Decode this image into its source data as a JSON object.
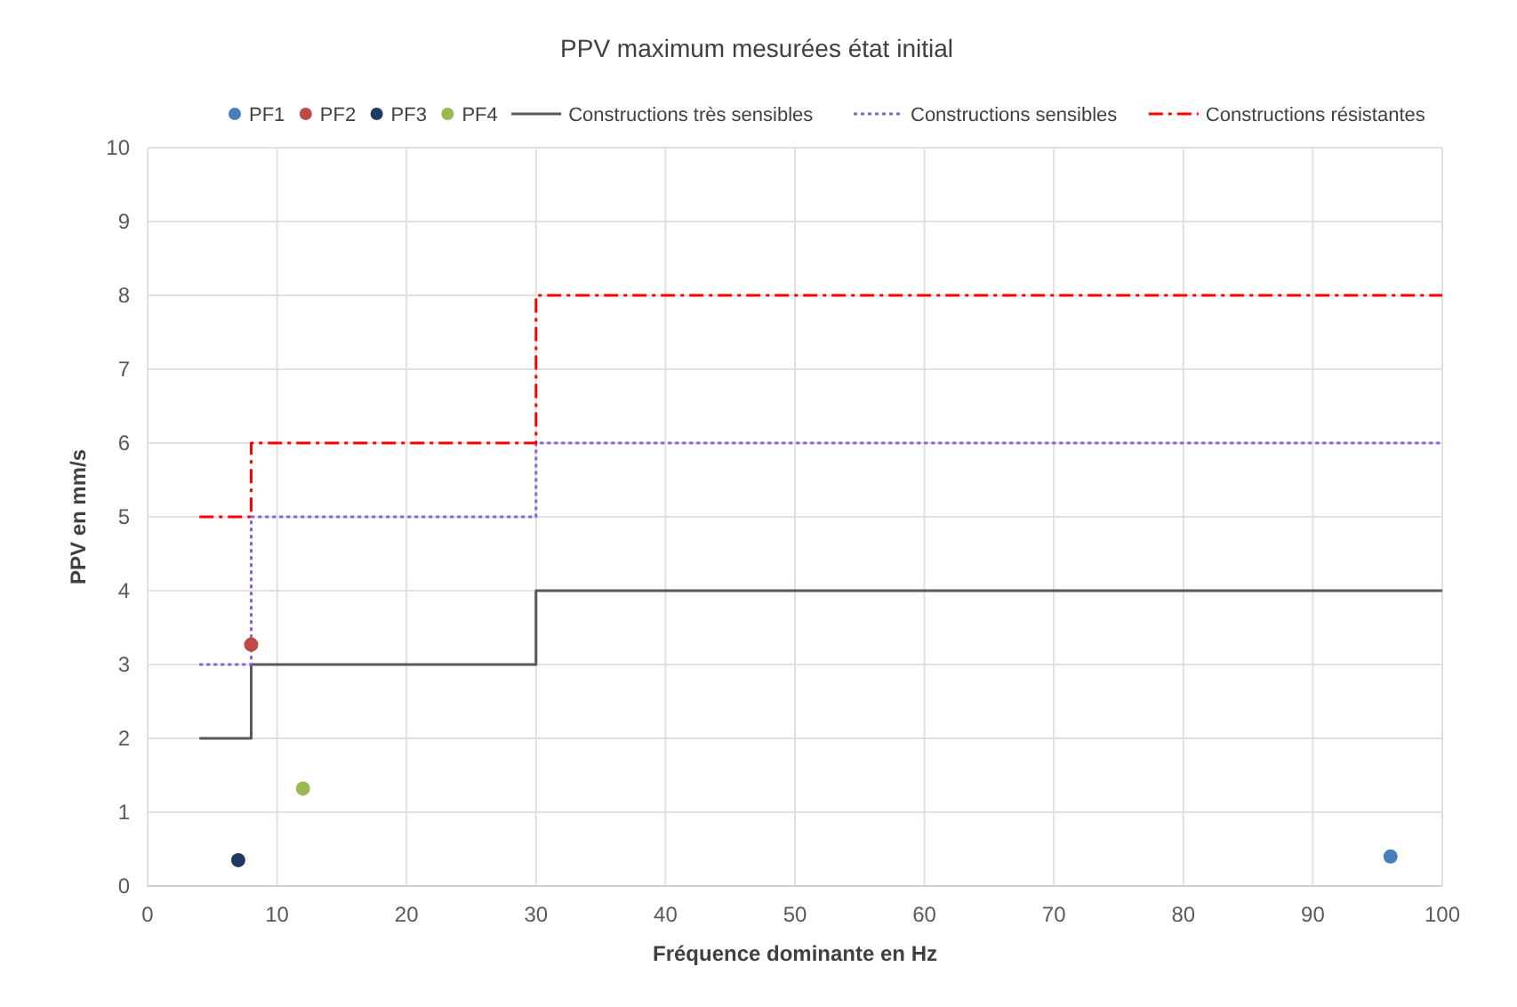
{
  "chart_data": {
    "type": "scatter",
    "title": "PPV maximum  mesurées  état initial",
    "xlabel": "Fréquence dominante en Hz",
    "ylabel": "PPV en mm/s",
    "xlim": [
      0,
      100
    ],
    "xticks": [
      0,
      10,
      20,
      30,
      40,
      50,
      60,
      70,
      80,
      90,
      100
    ],
    "ylim": [
      0,
      10
    ],
    "yticks": [
      0,
      1,
      2,
      3,
      4,
      5,
      6,
      7,
      8,
      9,
      10
    ],
    "grid": true,
    "legend": "top",
    "series": [
      {
        "name": "PF1",
        "marker": "circle",
        "color": "#4a7ebb",
        "x": [
          96
        ],
        "values": [
          0.4
        ]
      },
      {
        "name": "PF2",
        "marker": "circle",
        "color": "#be4b48",
        "x": [
          8
        ],
        "values": [
          3.27
        ]
      },
      {
        "name": "PF3",
        "marker": "circle",
        "color": "#1f3864",
        "x": [
          7
        ],
        "values": [
          0.35
        ]
      },
      {
        "name": "PF4",
        "marker": "circle",
        "color": "#98b954",
        "x": [
          12
        ],
        "values": [
          1.32
        ]
      },
      {
        "name": "Constructions très sensibles",
        "type": "step",
        "line_style": "solid",
        "color": "#595959",
        "x": [
          4,
          8,
          8,
          30,
          30,
          100
        ],
        "values": [
          2,
          2,
          3,
          3,
          4,
          4
        ]
      },
      {
        "name": "Constructions sensibles",
        "type": "step",
        "line_style": "dotted",
        "color": "#8a5fd8",
        "x": [
          4,
          8,
          8,
          30,
          30,
          100
        ],
        "values": [
          3,
          3,
          5,
          5,
          6,
          6
        ]
      },
      {
        "name": "Constructions résistantes",
        "type": "step",
        "line_style": "dashed",
        "color": "#ff0000",
        "x": [
          4,
          8,
          8,
          30,
          30,
          100
        ],
        "values": [
          5,
          5,
          6,
          6,
          8,
          8
        ]
      }
    ]
  }
}
